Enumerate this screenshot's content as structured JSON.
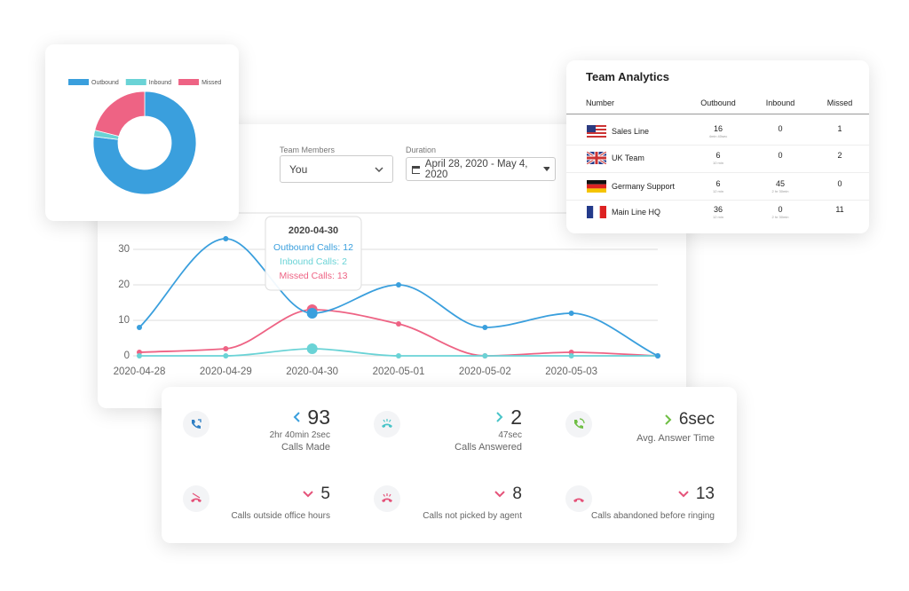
{
  "chart_data": [
    {
      "type": "pie",
      "donut": true,
      "categories": [
        "Outbound",
        "Inbound",
        "Missed"
      ],
      "values": [
        77,
        2,
        21
      ],
      "colors": [
        "#3a9fdd",
        "#6ad3d6",
        "#ee6384"
      ]
    },
    {
      "type": "line",
      "categories": [
        "2020-04-28",
        "2020-04-29",
        "2020-04-30",
        "2020-05-01",
        "2020-05-02",
        "2020-05-03",
        null
      ],
      "series": [
        {
          "color": "#3a9fdd",
          "values": [
            8,
            33,
            12,
            20,
            8,
            12,
            0
          ]
        },
        {
          "color": "#6ad3d6",
          "values": [
            0,
            0,
            2,
            0,
            0,
            0,
            0
          ]
        },
        {
          "color": "#ee6384",
          "values": [
            1,
            2,
            13,
            9,
            0,
            1,
            0
          ]
        }
      ],
      "ylim": [
        0,
        40
      ],
      "yticks": [
        0,
        10,
        20,
        30
      ],
      "grid": true,
      "tooltip": {
        "title": "2020-04-30",
        "lines": [
          "Outbound Calls: 12",
          "Inbound Calls: 2",
          "Missed Calls: 13"
        ]
      }
    }
  ],
  "filters": {
    "team_members": {
      "label": "Team Members",
      "value": "You"
    },
    "duration": {
      "label": "Duration",
      "value": "April 28, 2020 - May 4, 2020"
    }
  },
  "team_analytics": {
    "title": "Team Analytics",
    "columns": [
      "Number",
      "Outbound",
      "Inbound",
      "Missed"
    ],
    "rows": [
      {
        "name": "Sales Line",
        "outbound": 16,
        "outbound_note": "4min 40sec",
        "inbound": 0,
        "missed": 1
      },
      {
        "name": "UK Team",
        "outbound": 6,
        "outbound_note": "10 min",
        "inbound": 0,
        "missed": 2
      },
      {
        "name": "Germany Support",
        "outbound": 6,
        "outbound_note": "12 min",
        "inbound": 45,
        "inbound_note": "2 hr 30min",
        "missed": 0
      },
      {
        "name": "Main Line HQ",
        "outbound": 36,
        "outbound_note": "12 min",
        "inbound": 0,
        "inbound_note": "2 hr 30min",
        "missed": 11
      }
    ]
  },
  "stats": [
    {
      "value": 93,
      "detail": "2hr 40min 2sec",
      "label": "Calls Made"
    },
    {
      "value": 2,
      "detail": "47sec",
      "label": "Calls Answered"
    },
    {
      "value": "6sec",
      "label": "Avg. Answer Time"
    },
    {
      "value": 5,
      "label": "Calls outside office hours"
    },
    {
      "value": 8,
      "label": "Calls not picked by agent"
    },
    {
      "value": 13,
      "label": "Calls abandoned before ringing"
    }
  ]
}
